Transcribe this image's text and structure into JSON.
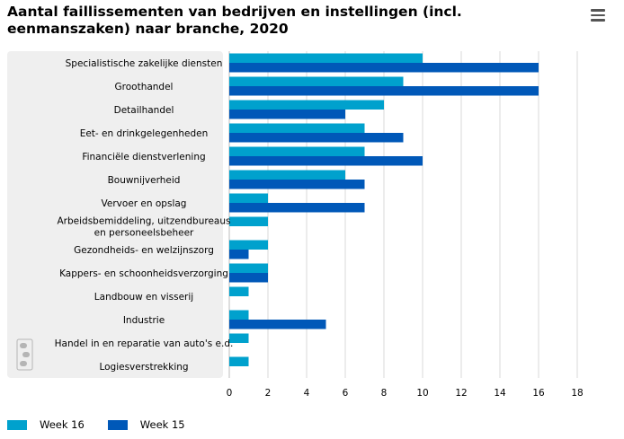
{
  "title": "Aantal faillissementen van bedrijven en instellingen (incl. eenmanszaken) naar branche, 2020",
  "menu_icon": "hamburger-menu-icon",
  "logo_icon": "cbs-logo-icon",
  "colors": {
    "week16": "#00a1cd",
    "week15": "#0058b8",
    "panel": "#efefef",
    "grid": "#d8d8d8"
  },
  "chart_data": {
    "type": "bar",
    "orientation": "horizontal",
    "categories": [
      [
        "Specialistische zakelijke diensten"
      ],
      [
        "Groothandel"
      ],
      [
        "Detailhandel"
      ],
      [
        "Eet- en drinkgelegenheden"
      ],
      [
        "Financiële dienstverlening"
      ],
      [
        "Bouwnijverheid"
      ],
      [
        "Vervoer en opslag"
      ],
      [
        "Arbeidsbemiddeling, uitzendbureaus",
        "en personeelsbeheer"
      ],
      [
        "Gezondheids- en welzijnszorg"
      ],
      [
        "Kappers- en schoonheidsverzorging"
      ],
      [
        "Landbouw en visserij"
      ],
      [
        "Industrie"
      ],
      [
        "Handel in en reparatie van auto's e.d."
      ],
      [
        "Logiesverstrekking"
      ]
    ],
    "series": [
      {
        "name": "Week 16",
        "values": [
          10,
          9,
          8,
          7,
          7,
          6,
          2,
          2,
          2,
          2,
          1,
          1,
          1,
          1
        ]
      },
      {
        "name": "Week 15",
        "values": [
          16,
          16,
          6,
          9,
          10,
          7,
          7,
          0,
          1,
          2,
          0,
          5,
          0,
          0
        ]
      }
    ],
    "xlim": [
      0,
      18
    ],
    "xticks": [
      0,
      2,
      4,
      6,
      8,
      10,
      12,
      14,
      16,
      18
    ],
    "grid": true,
    "legend_position": "bottom-left"
  }
}
